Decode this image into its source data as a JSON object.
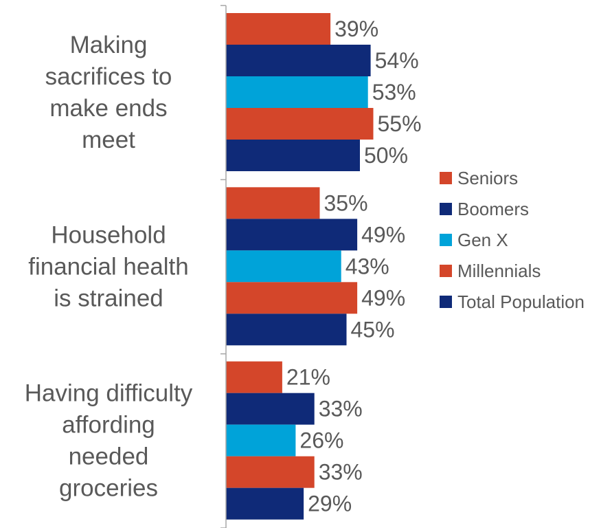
{
  "chart_data": {
    "type": "bar",
    "orientation": "horizontal",
    "categories": [
      [
        "Making",
        "sacrifices to",
        "make ends",
        "meet"
      ],
      [
        "Household",
        "financial health",
        "is strained"
      ],
      [
        "Having difficulty",
        "affording",
        "needed",
        "groceries"
      ]
    ],
    "series": [
      {
        "name": "Seniors",
        "color": "#d4462a",
        "values": [
          39,
          35,
          21
        ],
        "labels": [
          "39%",
          "35%",
          "21%"
        ]
      },
      {
        "name": "Boomers",
        "color": "#0f2a78",
        "values": [
          54,
          49,
          33
        ],
        "labels": [
          "54%",
          "49%",
          "33%"
        ]
      },
      {
        "name": "Gen X",
        "color": "#00a3d9",
        "values": [
          53,
          43,
          26
        ],
        "labels": [
          "53%",
          "43%",
          "26%"
        ]
      },
      {
        "name": "Millennials",
        "color": "#d4462a",
        "values": [
          55,
          49,
          33
        ],
        "labels": [
          "55%",
          "49%",
          "33%"
        ]
      },
      {
        "name": "Total Population",
        "color": "#0f2a78",
        "values": [
          50,
          45,
          29
        ],
        "labels": [
          "50%",
          "45%",
          "29%"
        ]
      }
    ],
    "xlim": [
      0,
      100
    ],
    "grid": false,
    "legend": "right",
    "label_color": "#595959",
    "axis_color": "#a6a6a6"
  }
}
